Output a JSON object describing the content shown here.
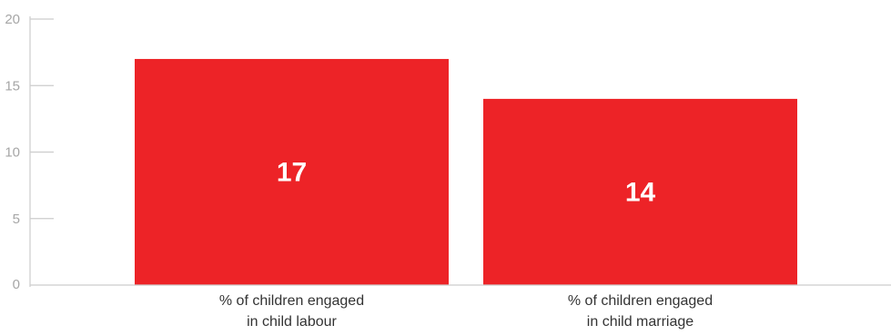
{
  "chart_data": {
    "type": "bar",
    "categories": [
      [
        "% of children engaged",
        "in child labour"
      ],
      [
        "% of children engaged",
        "in child marriage"
      ]
    ],
    "values": [
      17,
      14
    ],
    "data_labels": [
      "17",
      "14"
    ],
    "y_ticks": [
      0,
      5,
      10,
      15,
      20
    ],
    "ylim": [
      0,
      20
    ],
    "bar_color": "#ed2327",
    "axis_color": "#cccccc",
    "tick_label_color": "#a6a6a6",
    "grid": false,
    "legend": "none"
  }
}
